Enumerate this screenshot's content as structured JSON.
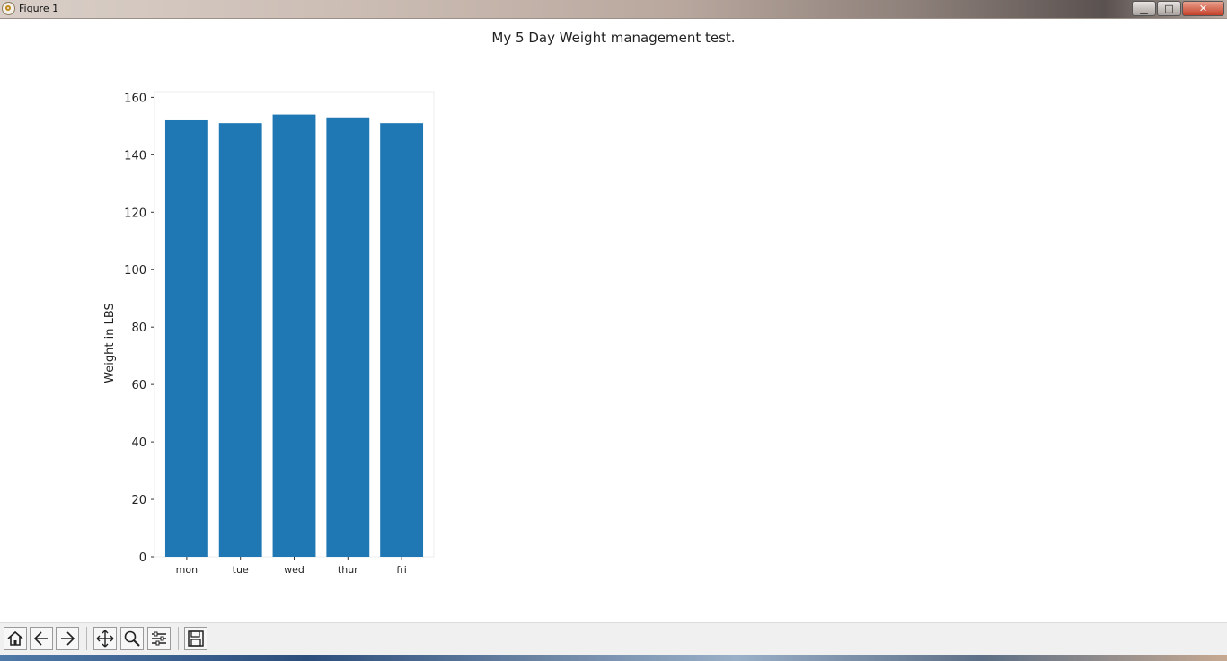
{
  "window": {
    "title": "Figure 1",
    "controls": {
      "minimize": "▁",
      "maximize": "□",
      "close": "✕"
    }
  },
  "chart_data": {
    "type": "bar",
    "title": "My 5 Day Weight management test.",
    "xlabel": "",
    "ylabel": "Weight in LBS",
    "categories": [
      "mon",
      "tue",
      "wed",
      "thur",
      "fri"
    ],
    "values": [
      152,
      151,
      154,
      153,
      151
    ],
    "ylim": [
      0,
      162
    ],
    "yticks": [
      0,
      20,
      40,
      60,
      80,
      100,
      120,
      140,
      160
    ],
    "bar_color": "#1f77b4",
    "grid": false,
    "legend": "none"
  },
  "toolbar": {
    "buttons": [
      "home-icon",
      "back-icon",
      "forward-icon",
      "pan-icon",
      "zoom-icon",
      "configure-subplots-icon",
      "save-icon"
    ]
  }
}
